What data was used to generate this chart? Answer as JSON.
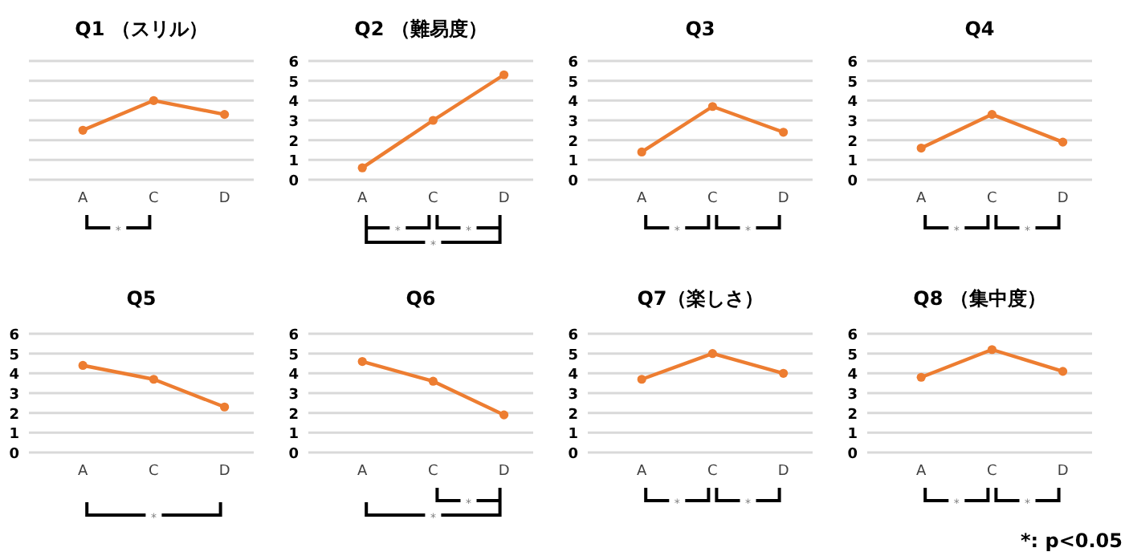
{
  "chart_data": [
    {
      "type": "line",
      "title": "Q1 （スリル）",
      "categories": [
        "A",
        "C",
        "D"
      ],
      "series": [
        {
          "color": "#ed7d31",
          "values": [
            2.5,
            4.0,
            3.3
          ]
        }
      ],
      "ylim": [
        0,
        6
      ],
      "yticks": [
        0,
        1,
        2,
        3,
        4,
        5,
        6
      ],
      "tick_labels": "x",
      "grid": "y",
      "marker": "circle",
      "annotations": [
        "*"
      ]
    },
    {
      "type": "line",
      "title": "Q2 （難易度）",
      "categories": [
        "A",
        "C",
        "D"
      ],
      "series": [
        {
          "color": "#ed7d31",
          "values": [
            0.6,
            3.0,
            5.3
          ]
        }
      ],
      "ylim": [
        0,
        6
      ],
      "yticks": [
        0,
        1,
        2,
        3,
        4,
        5,
        6
      ],
      "grid": "y",
      "marker": "circle",
      "annotations": [
        "*",
        "*",
        "*"
      ]
    },
    {
      "type": "line",
      "title": "Q3",
      "categories": [
        "A",
        "C",
        "D"
      ],
      "series": [
        {
          "color": "#ed7d31",
          "values": [
            1.4,
            3.7,
            2.4
          ]
        }
      ],
      "ylim": [
        0,
        6
      ],
      "yticks": [
        0,
        1,
        2,
        3,
        4,
        5,
        6
      ],
      "grid": "y",
      "marker": "circle",
      "annotations": [
        "*",
        "*"
      ]
    },
    {
      "type": "line",
      "title": "Q4",
      "categories": [
        "A",
        "C",
        "D"
      ],
      "series": [
        {
          "color": "#ed7d31",
          "values": [
            1.6,
            3.3,
            1.9
          ]
        }
      ],
      "ylim": [
        0,
        6
      ],
      "yticks": [
        0,
        1,
        2,
        3,
        4,
        5,
        6
      ],
      "grid": "y",
      "marker": "circle",
      "annotations": [
        "*",
        "*"
      ]
    },
    {
      "type": "line",
      "title": "Q5",
      "categories": [
        "A",
        "C",
        "D"
      ],
      "series": [
        {
          "color": "#ed7d31",
          "values": [
            4.4,
            3.7,
            2.3
          ]
        }
      ],
      "ylim": [
        0,
        6
      ],
      "yticks": [
        0,
        1,
        2,
        3,
        4,
        5,
        6
      ],
      "grid": "y",
      "marker": "circle",
      "annotations": [
        "*"
      ]
    },
    {
      "type": "line",
      "title": "Q6",
      "categories": [
        "A",
        "C",
        "D"
      ],
      "series": [
        {
          "color": "#ed7d31",
          "values": [
            4.6,
            3.6,
            1.9
          ]
        }
      ],
      "ylim": [
        0,
        6
      ],
      "yticks": [
        0,
        1,
        2,
        3,
        4,
        5,
        6
      ],
      "grid": "y",
      "marker": "circle",
      "annotations": [
        "*",
        "*"
      ]
    },
    {
      "type": "line",
      "title": "Q7（楽しさ）",
      "categories": [
        "A",
        "C",
        "D"
      ],
      "series": [
        {
          "color": "#ed7d31",
          "values": [
            3.7,
            5.0,
            4.0
          ]
        }
      ],
      "ylim": [
        0,
        6
      ],
      "yticks": [
        0,
        1,
        2,
        3,
        4,
        5,
        6
      ],
      "grid": "y",
      "marker": "circle",
      "annotations": [
        "*",
        "*"
      ]
    },
    {
      "type": "line",
      "title": "Q8 （集中度）",
      "categories": [
        "A",
        "C",
        "D"
      ],
      "series": [
        {
          "color": "#ed7d31",
          "values": [
            3.8,
            5.2,
            4.1
          ]
        }
      ],
      "ylim": [
        0,
        6
      ],
      "yticks": [
        0,
        1,
        2,
        3,
        4,
        5,
        6
      ],
      "grid": "y",
      "marker": "circle",
      "annotations": [
        "*",
        "*",
        "*: p<0.05"
      ]
    }
  ]
}
